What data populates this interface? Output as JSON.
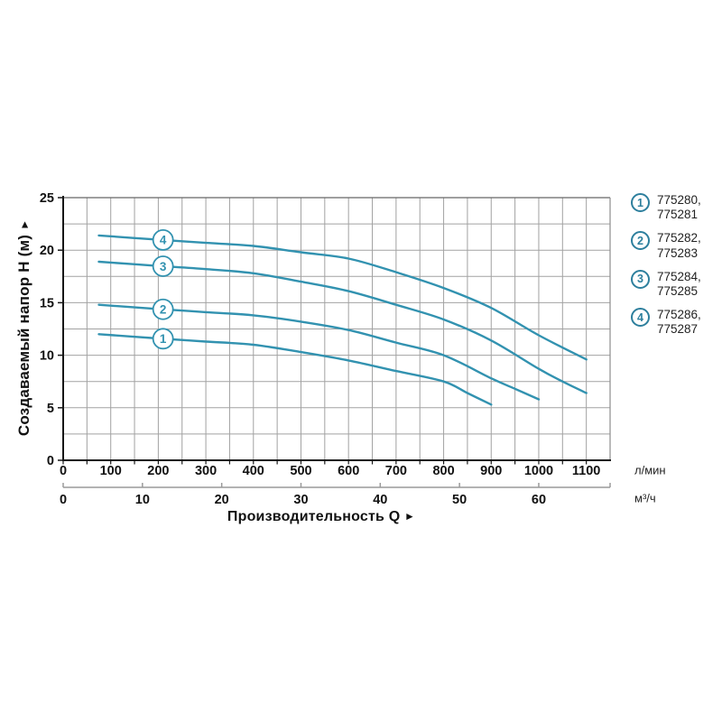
{
  "chart_data": {
    "type": "line",
    "xlabel": "Производительность Q",
    "ylabel": "Создаваемый напор H (м)",
    "axis_arrow": "►",
    "x_unit_primary": "л/мин",
    "x_unit_secondary": "м³/ч",
    "xlim_lmin": [
      0,
      1150
    ],
    "ylim": [
      0,
      25
    ],
    "y_ticks": [
      0,
      5,
      10,
      15,
      20,
      25
    ],
    "x_ticks_lmin": [
      0,
      100,
      200,
      300,
      400,
      500,
      600,
      700,
      800,
      900,
      1000,
      1100
    ],
    "x_ticks_m3h": [
      0,
      10,
      20,
      30,
      40,
      50,
      60
    ],
    "x_minor_step_lmin": 50,
    "y_grid_step": 2.5,
    "grid": true,
    "legend_position": "right",
    "curve_label_q": 210,
    "series": [
      {
        "num": "1",
        "name": "775280, 775281",
        "points": [
          [
            75,
            12.0
          ],
          [
            200,
            11.6
          ],
          [
            300,
            11.3
          ],
          [
            400,
            11.0
          ],
          [
            500,
            10.3
          ],
          [
            600,
            9.5
          ],
          [
            700,
            8.5
          ],
          [
            800,
            7.5
          ],
          [
            850,
            6.4
          ],
          [
            900,
            5.3
          ]
        ]
      },
      {
        "num": "2",
        "name": "775282, 775283",
        "points": [
          [
            75,
            14.8
          ],
          [
            200,
            14.4
          ],
          [
            300,
            14.1
          ],
          [
            400,
            13.8
          ],
          [
            500,
            13.2
          ],
          [
            600,
            12.4
          ],
          [
            700,
            11.2
          ],
          [
            800,
            10.0
          ],
          [
            900,
            7.8
          ],
          [
            950,
            6.8
          ],
          [
            1000,
            5.8
          ]
        ]
      },
      {
        "num": "3",
        "name": "775284, 775285",
        "points": [
          [
            75,
            18.9
          ],
          [
            200,
            18.5
          ],
          [
            300,
            18.2
          ],
          [
            400,
            17.8
          ],
          [
            500,
            17.0
          ],
          [
            600,
            16.1
          ],
          [
            700,
            14.8
          ],
          [
            800,
            13.4
          ],
          [
            900,
            11.4
          ],
          [
            1000,
            8.7
          ],
          [
            1050,
            7.5
          ],
          [
            1100,
            6.4
          ]
        ]
      },
      {
        "num": "4",
        "name": "775286, 775287",
        "points": [
          [
            75,
            21.4
          ],
          [
            200,
            21.0
          ],
          [
            300,
            20.7
          ],
          [
            400,
            20.4
          ],
          [
            500,
            19.8
          ],
          [
            600,
            19.2
          ],
          [
            700,
            17.9
          ],
          [
            800,
            16.4
          ],
          [
            900,
            14.5
          ],
          [
            1000,
            11.9
          ],
          [
            1100,
            9.6
          ]
        ]
      }
    ]
  },
  "legend": {
    "items": [
      {
        "num": "1",
        "line1": "775280,",
        "line2": "775281"
      },
      {
        "num": "2",
        "line1": "775282,",
        "line2": "775283"
      },
      {
        "num": "3",
        "line1": "775284,",
        "line2": "775285"
      },
      {
        "num": "4",
        "line1": "775286,",
        "line2": "775287"
      }
    ]
  },
  "colors": {
    "curve": "#3292b0",
    "legend_circle": "#2d7f9d",
    "grid": "#a2a2a2",
    "border_top": "#666666",
    "border_right": "#8d8d8d",
    "axis": "#161616",
    "axis2": "#9a9a9a",
    "tick_text": "#111111",
    "legend_text": "#222222"
  }
}
